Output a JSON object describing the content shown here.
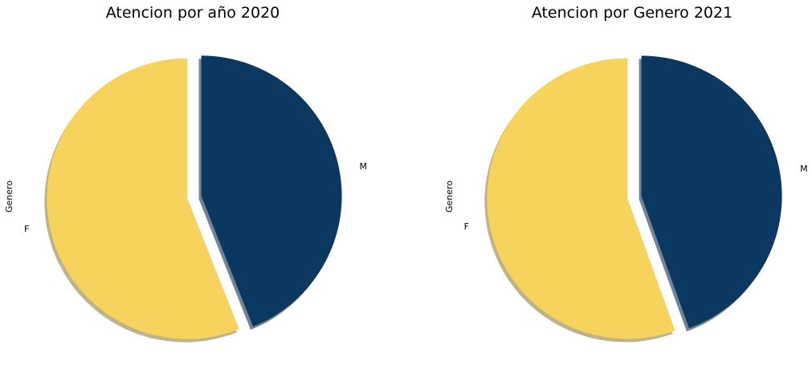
{
  "chart_data": [
    {
      "type": "pie",
      "title": "Atencion por año 2020",
      "ylabel": "Genero",
      "categories": [
        "M",
        "F"
      ],
      "values": [
        44,
        56
      ],
      "colors": [
        "#0b3861",
        "#f6d35c"
      ],
      "explode": [
        0.05,
        0.05
      ],
      "shadow": true,
      "start_angle": 90,
      "direction": "clockwise"
    },
    {
      "type": "pie",
      "title": "Atencion por  Genero 2021",
      "ylabel": "Genero",
      "categories": [
        "M",
        "F"
      ],
      "values": [
        44.5,
        55.5
      ],
      "colors": [
        "#0b3861",
        "#f6d35c"
      ],
      "explode": [
        0.05,
        0.05
      ],
      "shadow": true,
      "start_angle": 90,
      "direction": "clockwise"
    }
  ]
}
